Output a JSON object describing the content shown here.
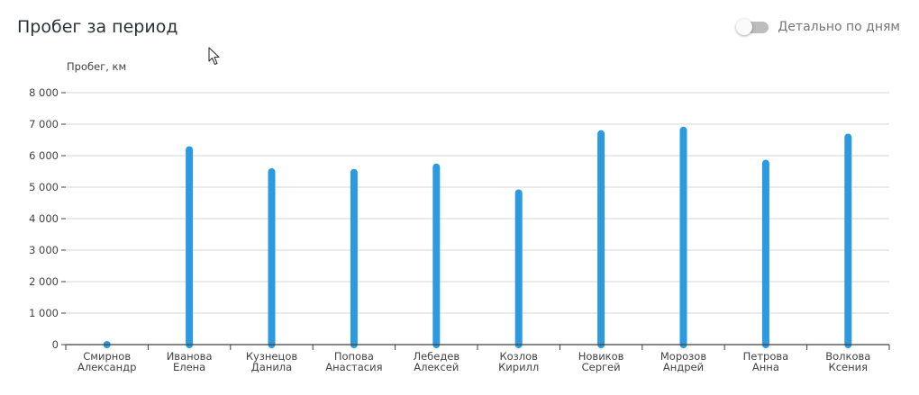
{
  "header": {
    "title": "Пробег за период",
    "toggle_label": "Детально по дням",
    "toggle_on": false
  },
  "colors": {
    "bar": "#2b9ae0",
    "grid": "#d6d6d6",
    "axis": "#424242"
  },
  "chart_data": {
    "type": "bar",
    "title": "",
    "xlabel": "",
    "ylabel": "Пробег, км",
    "ylim": [
      0,
      8000
    ],
    "yticks": [
      0,
      1000,
      2000,
      3000,
      4000,
      5000,
      6000,
      7000,
      8000
    ],
    "ytick_labels": [
      "0",
      "1 000",
      "2 000",
      "3 000",
      "4 000",
      "5 000",
      "6 000",
      "7 000",
      "8 000"
    ],
    "grid": true,
    "categories": [
      [
        "Смирнов",
        "Александр"
      ],
      [
        "Иванова",
        "Елена"
      ],
      [
        "Кузнецов",
        "Данила"
      ],
      [
        "Попова",
        "Анастасия"
      ],
      [
        "Лебедев",
        "Алексей"
      ],
      [
        "Козлов",
        "Кирилл"
      ],
      [
        "Новиков",
        "Сергей"
      ],
      [
        "Морозов",
        "Андрей"
      ],
      [
        "Петрова",
        "Анна"
      ],
      [
        "Волкова",
        "Ксения"
      ]
    ],
    "values": [
      100,
      6300,
      5600,
      5580,
      5750,
      4930,
      6810,
      6920,
      5870,
      6700
    ]
  }
}
